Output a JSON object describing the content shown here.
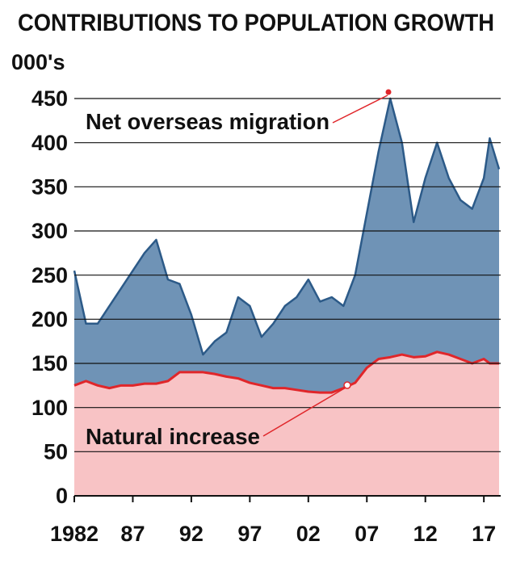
{
  "chart_data": {
    "type": "area",
    "stacked": true,
    "title": "CONTRIBUTIONS TO POPULATION GROWTH",
    "y_label": "000's",
    "x": [
      1982,
      1983,
      1984,
      1985,
      1986,
      1987,
      1988,
      1989,
      1990,
      1991,
      1992,
      1993,
      1994,
      1995,
      1996,
      1997,
      1998,
      1999,
      2000,
      2001,
      2002,
      2003,
      2004,
      2005,
      2006,
      2007,
      2008,
      2009,
      2010,
      2011,
      2012,
      2013,
      2014,
      2015,
      2016,
      2017,
      2017.5,
      2018.3
    ],
    "series": [
      {
        "name": "Natural increase",
        "color": "#e0262a",
        "fill": "#f8c3c5",
        "values": [
          125,
          130,
          125,
          122,
          125,
          125,
          127,
          127,
          130,
          140,
          140,
          140,
          138,
          135,
          133,
          128,
          125,
          122,
          122,
          120,
          118,
          117,
          117,
          122,
          128,
          145,
          155,
          157,
          160,
          157,
          158,
          163,
          160,
          155,
          150,
          155,
          150,
          150
        ]
      },
      {
        "name": "Net overseas migration",
        "color": "#2c5a88",
        "fill": "#6f93b6",
        "values": [
          130,
          65,
          70,
          93,
          110,
          130,
          148,
          163,
          115,
          100,
          65,
          20,
          37,
          50,
          92,
          87,
          55,
          73,
          93,
          105,
          127,
          103,
          108,
          93,
          122,
          175,
          235,
          293,
          240,
          153,
          202,
          237,
          200,
          180,
          175,
          205,
          255,
          220
        ]
      }
    ],
    "xlim": [
      1982,
      2018.3
    ],
    "xticks": [
      {
        "value": 1982,
        "label": "1982"
      },
      {
        "value": 1987,
        "label": "87"
      },
      {
        "value": 1992,
        "label": "92"
      },
      {
        "value": 1997,
        "label": "97"
      },
      {
        "value": 2002,
        "label": "02"
      },
      {
        "value": 2007,
        "label": "07"
      },
      {
        "value": 2012,
        "label": "12"
      },
      {
        "value": 2017,
        "label": "17"
      }
    ],
    "ylim": [
      0,
      450
    ],
    "yticks": [
      0,
      50,
      100,
      150,
      200,
      250,
      300,
      350,
      400,
      450
    ],
    "grid": true
  }
}
